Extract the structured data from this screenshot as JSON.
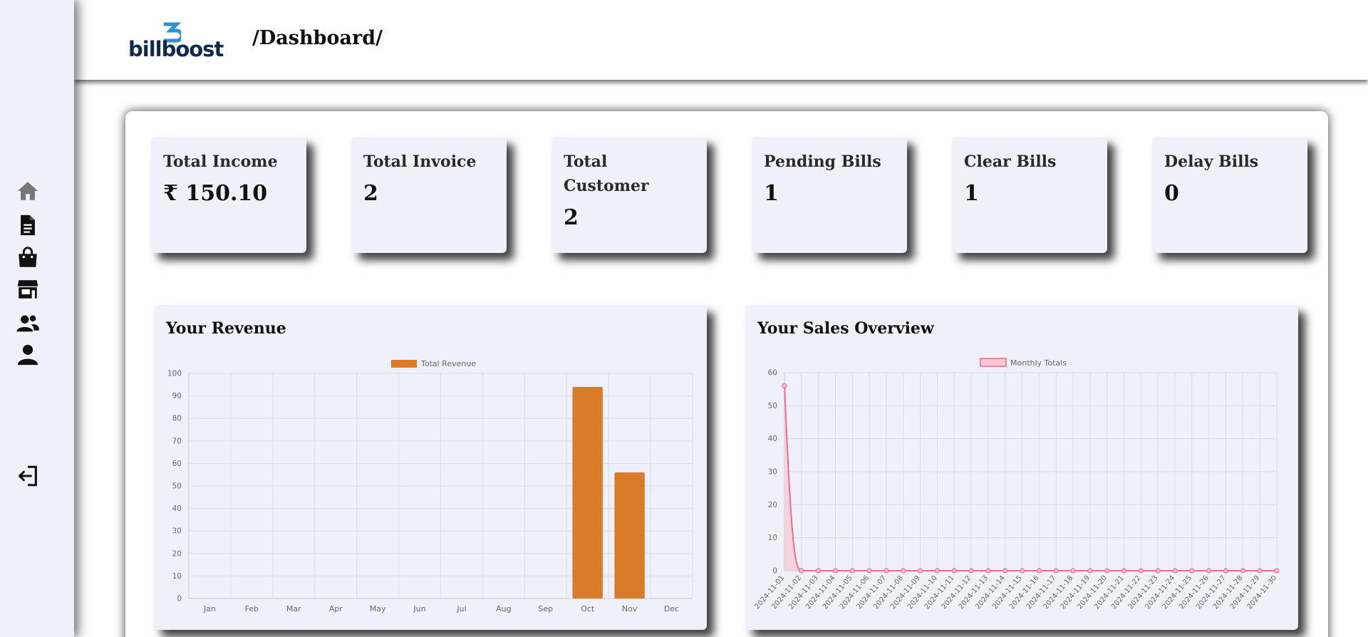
{
  "app": {
    "logo_text": "billboost",
    "page_title": "/Dashboard/"
  },
  "sidebar": {
    "items": [
      {
        "icon": "home-icon"
      },
      {
        "icon": "document-icon"
      },
      {
        "icon": "shopping-bag-icon"
      },
      {
        "icon": "store-icon"
      },
      {
        "icon": "users-icon"
      },
      {
        "icon": "user-icon"
      },
      {
        "icon": "logout-icon"
      }
    ]
  },
  "stats": [
    {
      "label": "Total Income",
      "value": "₹ 150.10"
    },
    {
      "label": "Total Invoice",
      "value": "2"
    },
    {
      "label": "Total Customer",
      "value": "2"
    },
    {
      "label": "Pending Bills",
      "value": "1"
    },
    {
      "label": "Clear Bills",
      "value": "1"
    },
    {
      "label": "Delay Bills",
      "value": "0"
    }
  ],
  "revenue": {
    "title": "Your Revenue"
  },
  "sales": {
    "title": "Your Sales Overview"
  },
  "colors": {
    "bar": "#d97b29",
    "line": "#f06c8a",
    "line_fill": "#f7c9d5",
    "card_bg": "#f0f0fa"
  },
  "chart_data": [
    {
      "type": "bar",
      "legend": [
        "Total Revenue"
      ],
      "categories": [
        "Jan",
        "Feb",
        "Mar",
        "Apr",
        "May",
        "Jun",
        "Jul",
        "Aug",
        "Sep",
        "Oct",
        "Nov",
        "Dec"
      ],
      "series": [
        {
          "name": "Total Revenue",
          "values": [
            0,
            0,
            0,
            0,
            0,
            0,
            0,
            0,
            0,
            94,
            56,
            0
          ]
        }
      ],
      "ylim": [
        0,
        100
      ],
      "yticks": [
        0,
        10,
        20,
        30,
        40,
        50,
        60,
        70,
        80,
        90,
        100
      ],
      "grid": true,
      "legend_position": "top"
    },
    {
      "type": "line",
      "legend": [
        "Monthly Totals"
      ],
      "x": [
        "2024-11-01",
        "2024-11-02",
        "2024-11-03",
        "2024-11-04",
        "2024-11-05",
        "2024-11-06",
        "2024-11-07",
        "2024-11-08",
        "2024-11-09",
        "2024-11-10",
        "2024-11-11",
        "2024-11-12",
        "2024-11-13",
        "2024-11-14",
        "2024-11-15",
        "2024-11-16",
        "2024-11-17",
        "2024-11-18",
        "2024-11-19",
        "2024-11-20",
        "2024-11-21",
        "2024-11-22",
        "2024-11-23",
        "2024-11-24",
        "2024-11-25",
        "2024-11-26",
        "2024-11-27",
        "2024-11-28",
        "2024-11-29",
        "2024-11-30"
      ],
      "series": [
        {
          "name": "Monthly Totals",
          "values": [
            56,
            0,
            0,
            0,
            0,
            0,
            0,
            0,
            0,
            0,
            0,
            0,
            0,
            0,
            0,
            0,
            0,
            0,
            0,
            0,
            0,
            0,
            0,
            0,
            0,
            0,
            0,
            0,
            0,
            0
          ]
        }
      ],
      "ylim": [
        0,
        60
      ],
      "yticks": [
        0,
        10,
        20,
        30,
        40,
        50,
        60
      ],
      "grid": true,
      "legend_position": "top"
    }
  ]
}
